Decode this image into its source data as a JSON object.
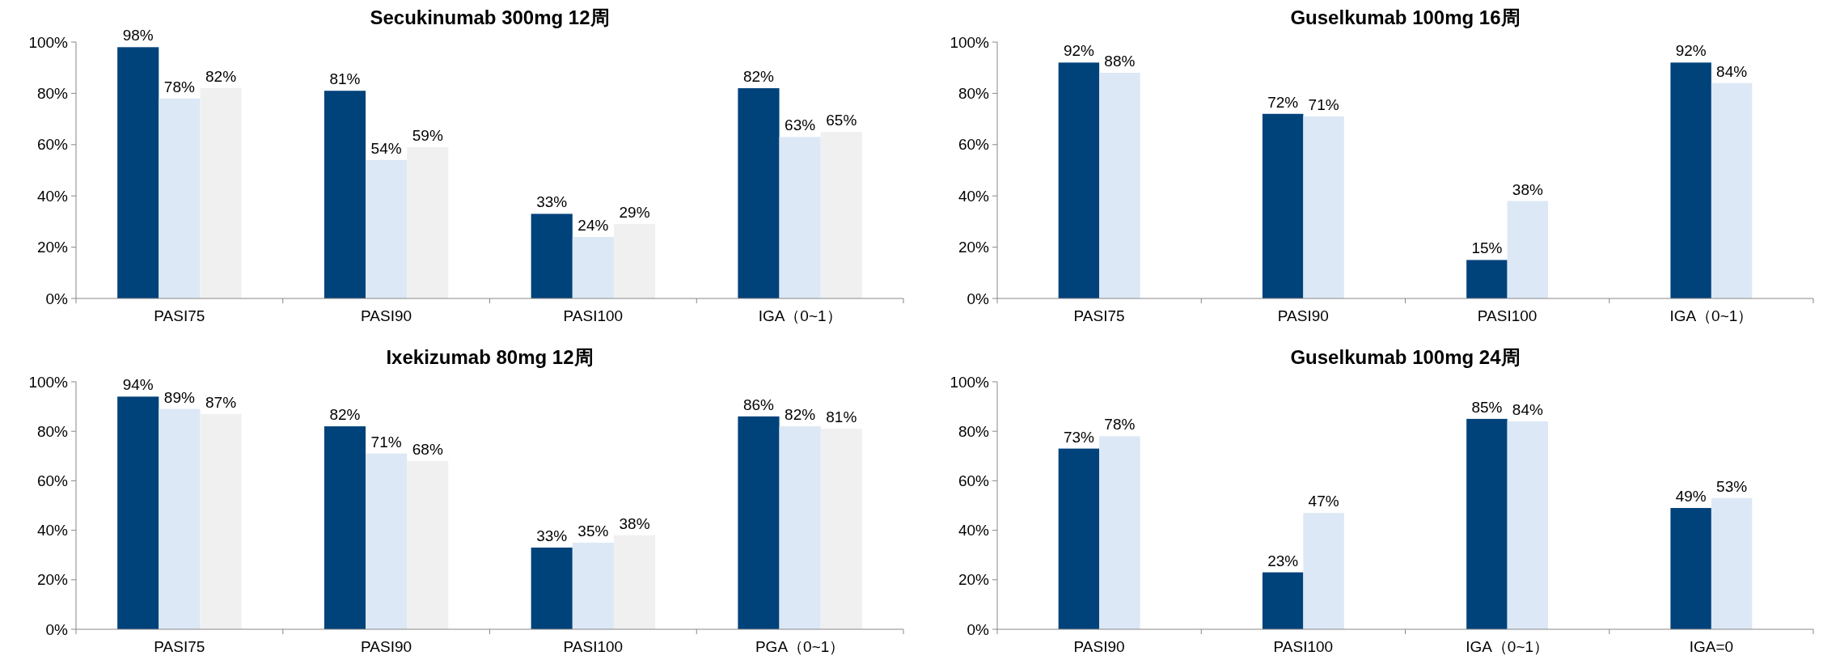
{
  "chart_data": [
    {
      "type": "bar",
      "title": "Secukinumab 300mg 12周",
      "categories": [
        "PASI75",
        "PASI90",
        "PASI100",
        "IGA（0~1）"
      ],
      "ylim": [
        0,
        100
      ],
      "yticks": [
        {
          "value": 0,
          "label": "0%"
        },
        {
          "value": 20,
          "label": "20%"
        },
        {
          "value": 40,
          "label": "40%"
        },
        {
          "value": 60,
          "label": "60%"
        },
        {
          "value": 80,
          "label": "80%"
        },
        {
          "value": 100,
          "label": "100%"
        }
      ],
      "series": [
        {
          "color": "#00427a",
          "values": [
            98,
            81,
            33,
            82
          ],
          "value_labels": [
            "98%",
            "81%",
            "33%",
            "82%"
          ]
        },
        {
          "color": "#dce8f5",
          "values": [
            78,
            54,
            24,
            63
          ],
          "value_labels": [
            "78%",
            "54%",
            "24%",
            "63%"
          ]
        },
        {
          "color": "#f0f0f0",
          "values": [
            82,
            59,
            29,
            65
          ],
          "value_labels": [
            "82%",
            "59%",
            "29%",
            "65%"
          ]
        }
      ]
    },
    {
      "type": "bar",
      "title": "Guselkumab 100mg 16周",
      "categories": [
        "PASI75",
        "PASI90",
        "PASI100",
        "IGA（0~1）"
      ],
      "ylim": [
        0,
        100
      ],
      "yticks": [
        {
          "value": 0,
          "label": "0%"
        },
        {
          "value": 20,
          "label": "20%"
        },
        {
          "value": 40,
          "label": "40%"
        },
        {
          "value": 60,
          "label": "60%"
        },
        {
          "value": 80,
          "label": "80%"
        },
        {
          "value": 100,
          "label": "100%"
        }
      ],
      "series": [
        {
          "color": "#00427a",
          "values": [
            92,
            72,
            15,
            92
          ],
          "value_labels": [
            "92%",
            "72%",
            "15%",
            "92%"
          ]
        },
        {
          "color": "#dce8f5",
          "values": [
            88,
            71,
            38,
            84
          ],
          "value_labels": [
            "88%",
            "71%",
            "38%",
            "84%"
          ]
        }
      ]
    },
    {
      "type": "bar",
      "title": "Ixekizumab 80mg 12周",
      "categories": [
        "PASI75",
        "PASI90",
        "PASI100",
        "PGA（0~1）"
      ],
      "ylim": [
        0,
        100
      ],
      "yticks": [
        {
          "value": 0,
          "label": "0%"
        },
        {
          "value": 20,
          "label": "20%"
        },
        {
          "value": 40,
          "label": "40%"
        },
        {
          "value": 60,
          "label": "60%"
        },
        {
          "value": 80,
          "label": "80%"
        },
        {
          "value": 100,
          "label": "100%"
        }
      ],
      "series": [
        {
          "color": "#00427a",
          "values": [
            94,
            82,
            33,
            86
          ],
          "value_labels": [
            "94%",
            "82%",
            "33%",
            "86%"
          ]
        },
        {
          "color": "#dce8f5",
          "values": [
            89,
            71,
            35,
            82
          ],
          "value_labels": [
            "89%",
            "71%",
            "35%",
            "82%"
          ]
        },
        {
          "color": "#f0f0f0",
          "values": [
            87,
            68,
            38,
            81
          ],
          "value_labels": [
            "87%",
            "68%",
            "38%",
            "81%"
          ]
        }
      ]
    },
    {
      "type": "bar",
      "title": "Guselkumab 100mg 24周",
      "categories": [
        "PASI90",
        "PASI100",
        "IGA（0~1）",
        "IGA=0"
      ],
      "ylim": [
        0,
        100
      ],
      "yticks": [
        {
          "value": 0,
          "label": "0%"
        },
        {
          "value": 20,
          "label": "20%"
        },
        {
          "value": 40,
          "label": "40%"
        },
        {
          "value": 60,
          "label": "60%"
        },
        {
          "value": 80,
          "label": "80%"
        },
        {
          "value": 100,
          "label": "100%"
        }
      ],
      "series": [
        {
          "color": "#00427a",
          "values": [
            73,
            23,
            85,
            49
          ],
          "value_labels": [
            "73%",
            "23%",
            "85%",
            "49%"
          ]
        },
        {
          "color": "#dce8f5",
          "values": [
            78,
            47,
            84,
            53
          ],
          "value_labels": [
            "78%",
            "47%",
            "84%",
            "53%"
          ]
        }
      ]
    }
  ]
}
